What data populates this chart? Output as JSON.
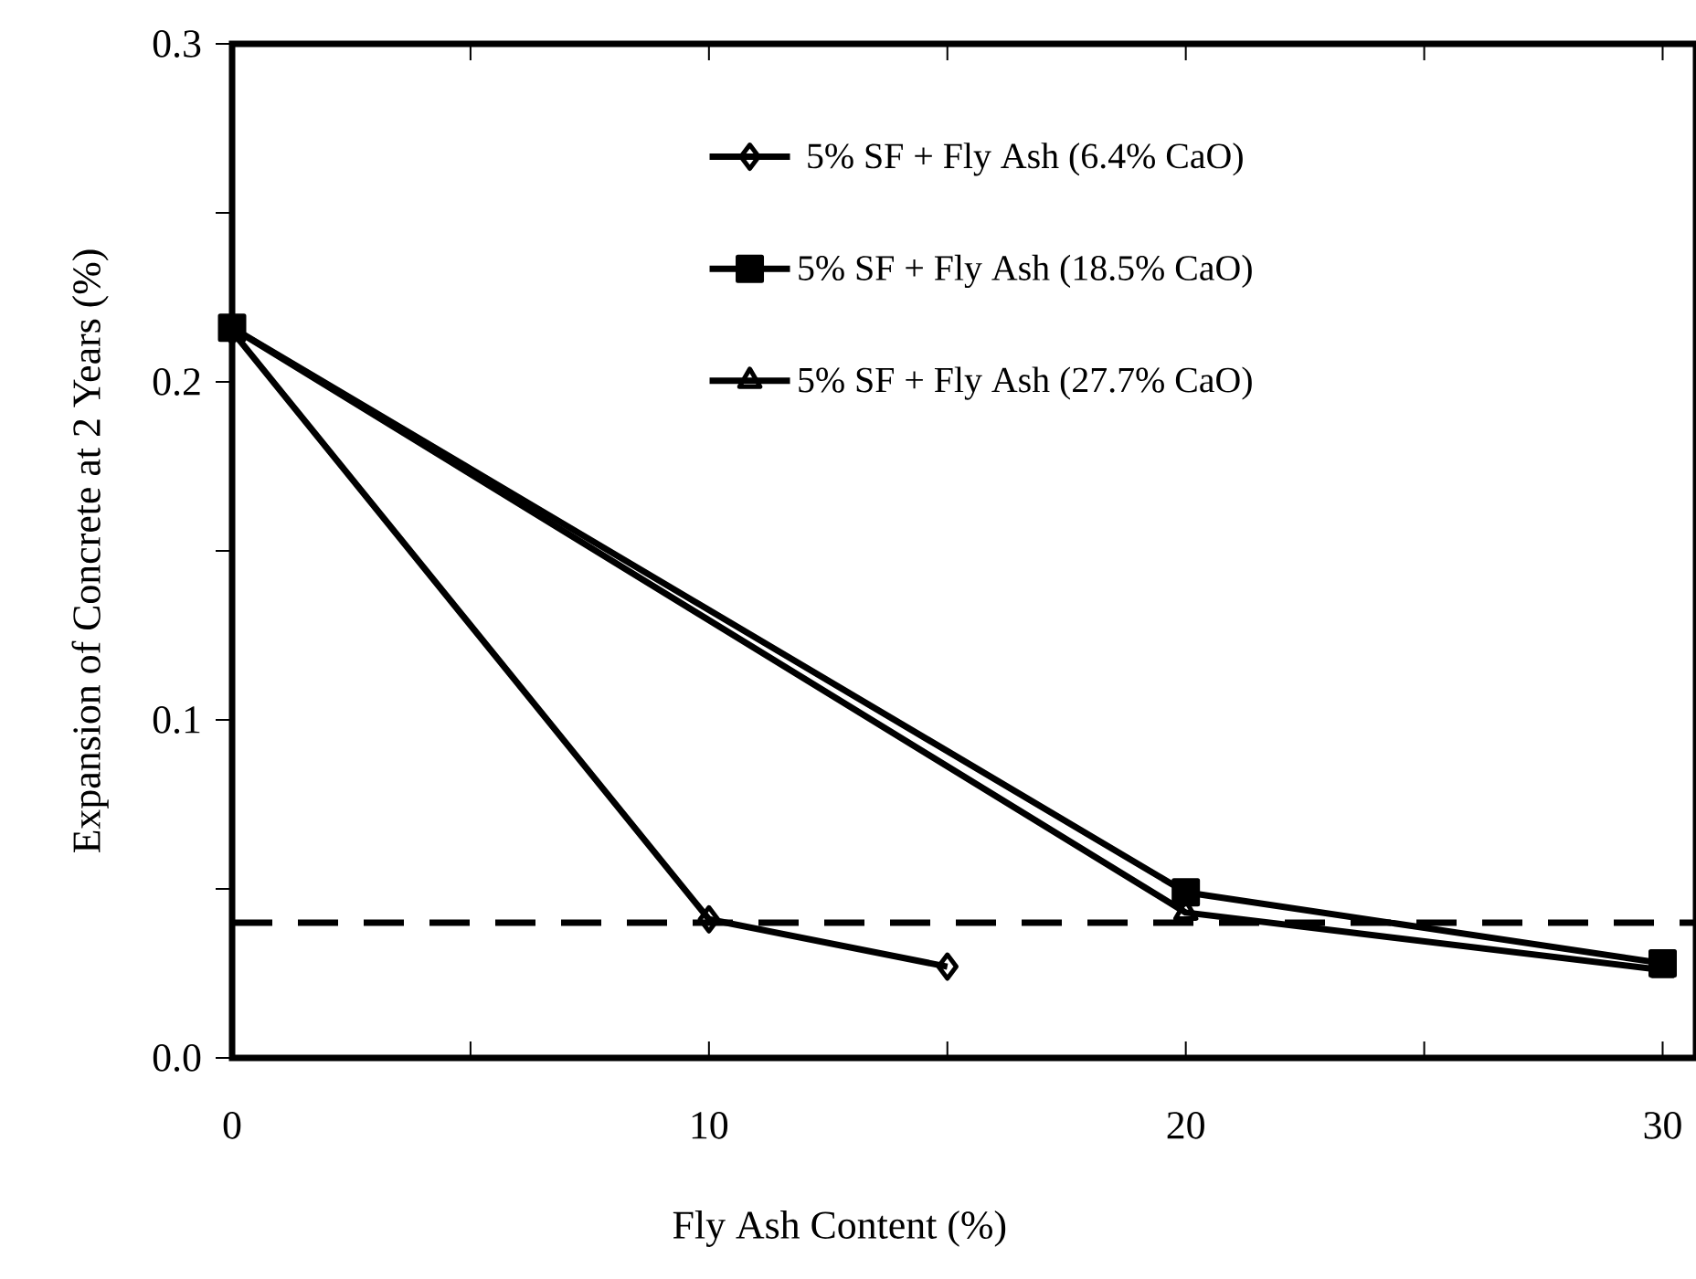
{
  "chart_data": {
    "type": "line",
    "xlabel": "Fly Ash Content (%)",
    "ylabel": "Expansion of Concrete at 2 Years (%)",
    "xlim": [
      0,
      30.7
    ],
    "xticks": [
      0,
      {
        "value": 5,
        "label": null
      },
      10,
      {
        "value": 15,
        "label": null
      },
      20,
      {
        "value": 25,
        "label": null
      },
      30
    ],
    "ylim": [
      0,
      0.3
    ],
    "yticks": [
      {
        "value": 0,
        "label": "0.0"
      },
      {
        "value": 0.05,
        "label": null
      },
      0.1,
      {
        "value": 0.15,
        "label": null
      },
      0.2,
      {
        "value": 0.25,
        "label": null
      },
      0.3
    ],
    "grid": false,
    "legend": "top right",
    "line_style": "solid",
    "series": [
      {
        "name": "5% SF + Fly Ash (6.4% CaO)",
        "color": "#000000",
        "marker": "diamond",
        "x": [
          0,
          10,
          15
        ],
        "values": [
          0.215,
          0.041,
          0.027
        ]
      },
      {
        "name": "5% SF + Fly Ash (18.5% CaO)",
        "color": "#000000",
        "marker": "square",
        "x": [
          0,
          20,
          30
        ],
        "values": [
          0.216,
          0.049,
          0.028
        ]
      },
      {
        "name": "5% SF + Fly Ash (27.7% CaO)",
        "color": "#000000",
        "marker": "triangle",
        "x": [
          0,
          20,
          30
        ],
        "values": [
          0.216,
          0.043,
          0.026
        ]
      }
    ],
    "ref_lines": [
      {
        "axis": "y",
        "value": 0.04,
        "color": "#000000",
        "line_style": "dashed"
      }
    ]
  }
}
